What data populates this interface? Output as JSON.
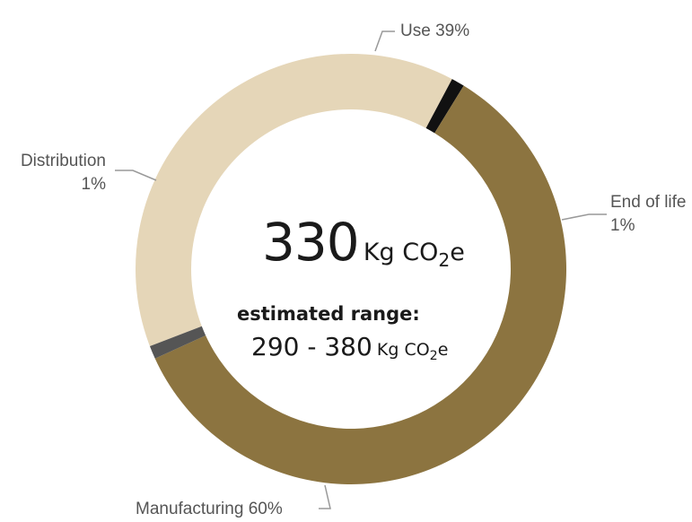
{
  "chart_data": {
    "type": "pie",
    "style": "donut",
    "slices": [
      {
        "name": "Use",
        "percent_label": "39%",
        "value": 39,
        "color": "#e5d6b8"
      },
      {
        "name": "End of life",
        "percent_label": "1%",
        "value": 1,
        "color": "#111111"
      },
      {
        "name": "Manufacturing",
        "percent_label": "60%",
        "value": 60,
        "color": "#8c7440"
      },
      {
        "name": "Distribution",
        "percent_label": "1%",
        "value": 1,
        "color": "#555555"
      }
    ],
    "total": {
      "value": "330",
      "unit_prefix": "Kg CO",
      "unit_sub": "2",
      "unit_suffix": "e"
    },
    "range": {
      "label": "estimated range:",
      "value": "290 - 380",
      "unit_prefix": "Kg CO",
      "unit_sub": "2",
      "unit_suffix": "e"
    }
  }
}
